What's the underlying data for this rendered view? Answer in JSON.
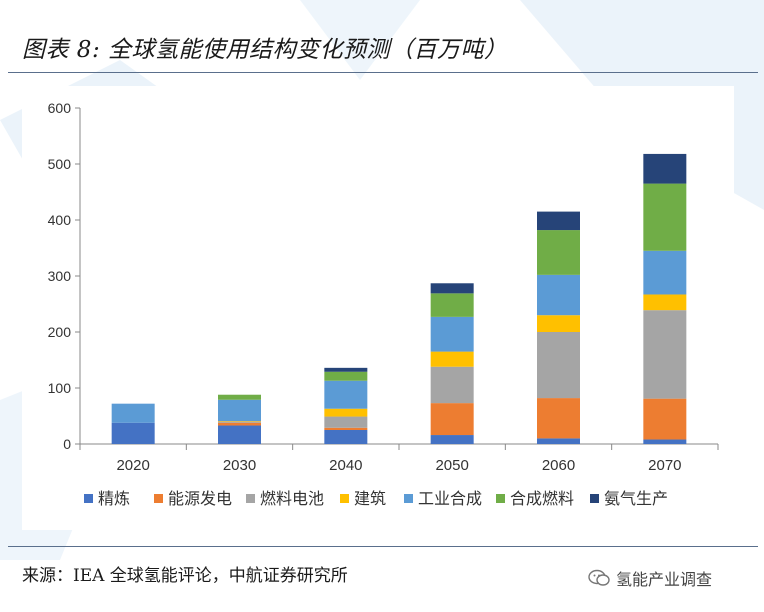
{
  "title": "图表 8: 全球氢能使用结构变化预测（百万吨）",
  "source": "来源：IEA 全球氢能评论，中航证券研究所",
  "watermark": "氢能产业调查",
  "colors": {
    "精炼": "#4472c4",
    "能源发电": "#ed7d31",
    "燃料电池": "#a5a5a5",
    "建筑": "#ffc000",
    "工业合成": "#5b9bd5",
    "合成燃料": "#70ad47",
    "氨气生产": "#264478"
  },
  "chart_data": {
    "type": "bar",
    "stacked": true,
    "categories": [
      "2020",
      "2030",
      "2040",
      "2050",
      "2060",
      "2070"
    ],
    "series": [
      {
        "name": "精炼",
        "values": [
          38,
          33,
          25,
          16,
          10,
          8
        ]
      },
      {
        "name": "能源发电",
        "values": [
          0,
          5,
          4,
          57,
          72,
          73
        ]
      },
      {
        "name": "燃料电池",
        "values": [
          0,
          2,
          20,
          65,
          118,
          158
        ]
      },
      {
        "name": "建筑",
        "values": [
          0,
          1,
          14,
          27,
          30,
          28
        ]
      },
      {
        "name": "工业合成",
        "values": [
          34,
          38,
          50,
          62,
          72,
          78
        ]
      },
      {
        "name": "合成燃料",
        "values": [
          0,
          9,
          16,
          42,
          80,
          120
        ]
      },
      {
        "name": "氨气生产",
        "values": [
          0,
          0,
          7,
          18,
          33,
          53
        ]
      }
    ],
    "yticks": [
      0,
      100,
      200,
      300,
      400,
      500,
      600
    ],
    "ylim": [
      0,
      600
    ],
    "legend_position": "bottom",
    "grid": false
  }
}
